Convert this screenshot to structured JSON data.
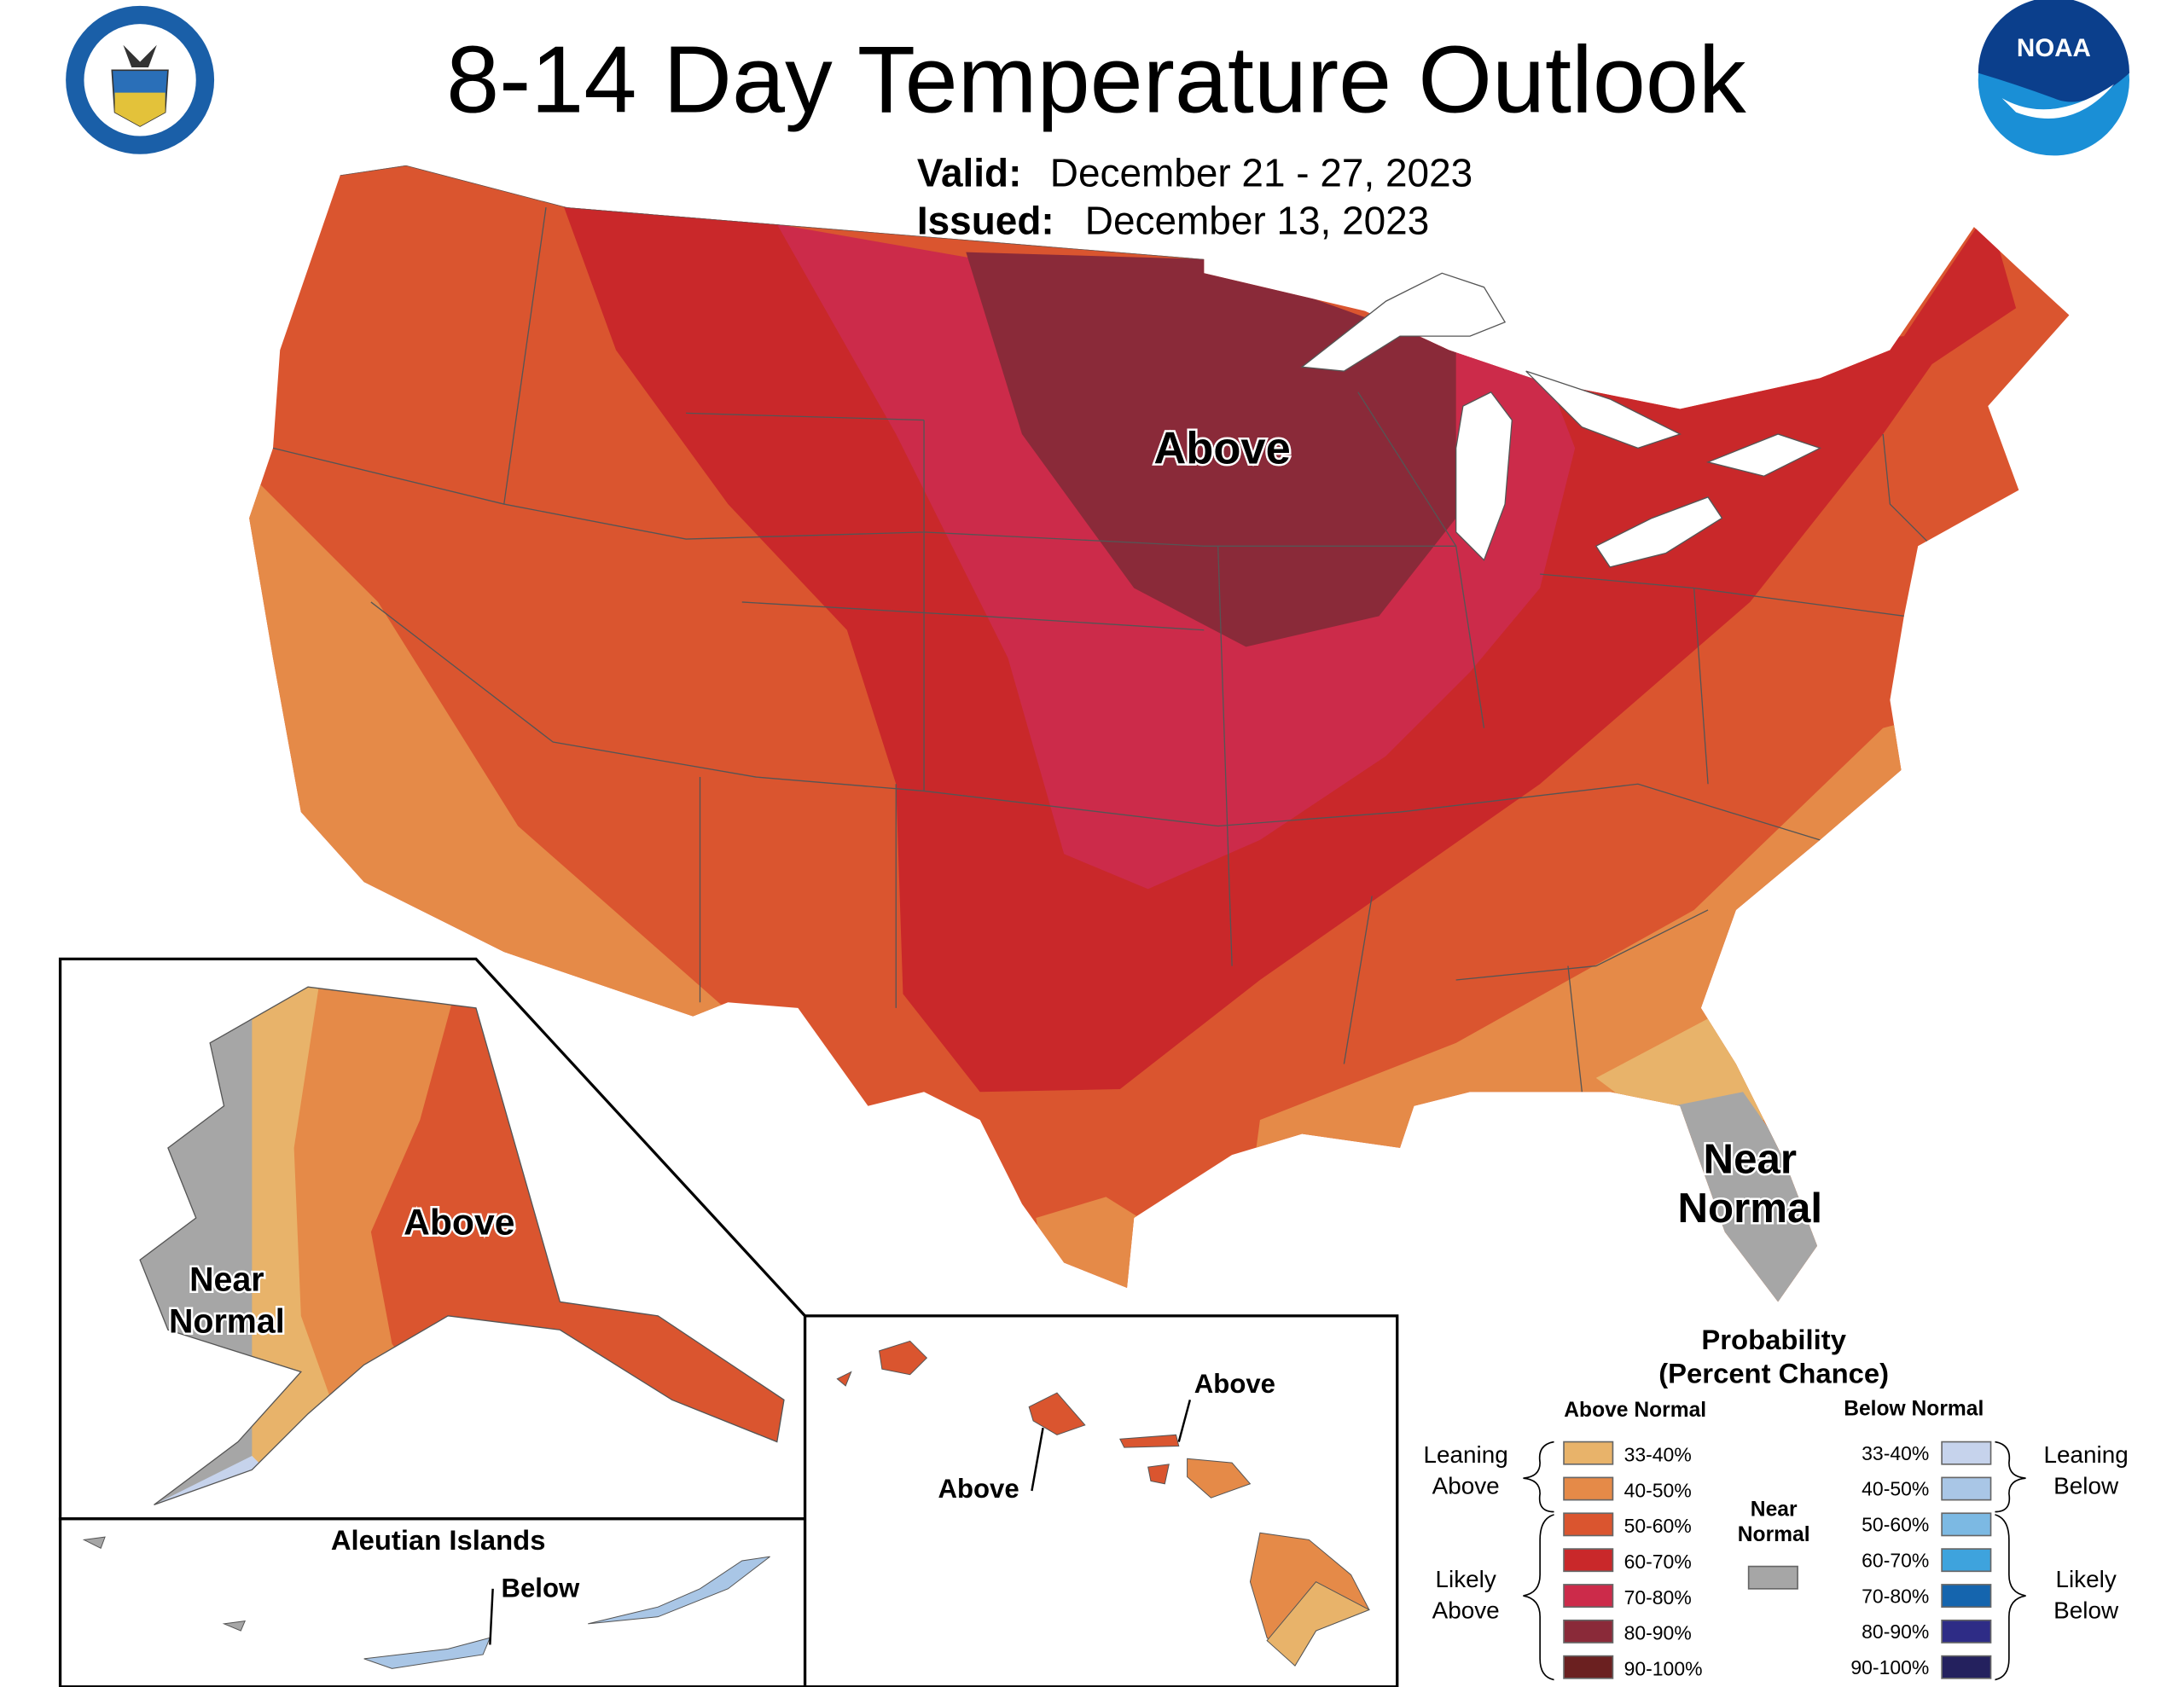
{
  "title": "8-14 Day Temperature Outlook",
  "valid_label": "Valid:",
  "valid_value": "December 21 - 27, 2023",
  "issued_label": "Issued:",
  "issued_value": "December 13, 2023",
  "logos": {
    "left": "Department of Commerce, United States of America",
    "right": "NOAA"
  },
  "map_labels": {
    "conus_above": "Above",
    "fl_near": "Near",
    "fl_normal": "Normal",
    "ak_above": "Above",
    "ak_near": "Near",
    "ak_normal": "Normal",
    "aleutian_title": "Aleutian Islands",
    "aleutian_below": "Below",
    "hi_above_1": "Above",
    "hi_above_2": "Above"
  },
  "legend": {
    "title1": "Probability",
    "title2": "(Percent Chance)",
    "above_header": "Above Normal",
    "below_header": "Below Normal",
    "leaning_above": [
      "Leaning",
      "Above"
    ],
    "likely_above": [
      "Likely",
      "Above"
    ],
    "leaning_below": [
      "Leaning",
      "Below"
    ],
    "likely_below": [
      "Likely",
      "Below"
    ],
    "near_normal": [
      "Near",
      "Normal"
    ],
    "near_color": "#A6A6A6",
    "above": [
      {
        "range": "33-40%",
        "color": "#E8B36A"
      },
      {
        "range": "40-50%",
        "color": "#E58A48"
      },
      {
        "range": "50-60%",
        "color": "#DA552F"
      },
      {
        "range": "60-70%",
        "color": "#C9282A"
      },
      {
        "range": "70-80%",
        "color": "#CC2B4A"
      },
      {
        "range": "80-90%",
        "color": "#8A2A39"
      },
      {
        "range": "90-100%",
        "color": "#6B2020"
      }
    ],
    "below": [
      {
        "range": "33-40%",
        "color": "#C6D3EC"
      },
      {
        "range": "40-50%",
        "color": "#A9C6E6"
      },
      {
        "range": "50-60%",
        "color": "#7CB9E3"
      },
      {
        "range": "60-70%",
        "color": "#3EA3DD"
      },
      {
        "range": "70-80%",
        "color": "#1565AE"
      },
      {
        "range": "80-90%",
        "color": "#2E2C86"
      },
      {
        "range": "90-100%",
        "color": "#24215E"
      }
    ]
  }
}
